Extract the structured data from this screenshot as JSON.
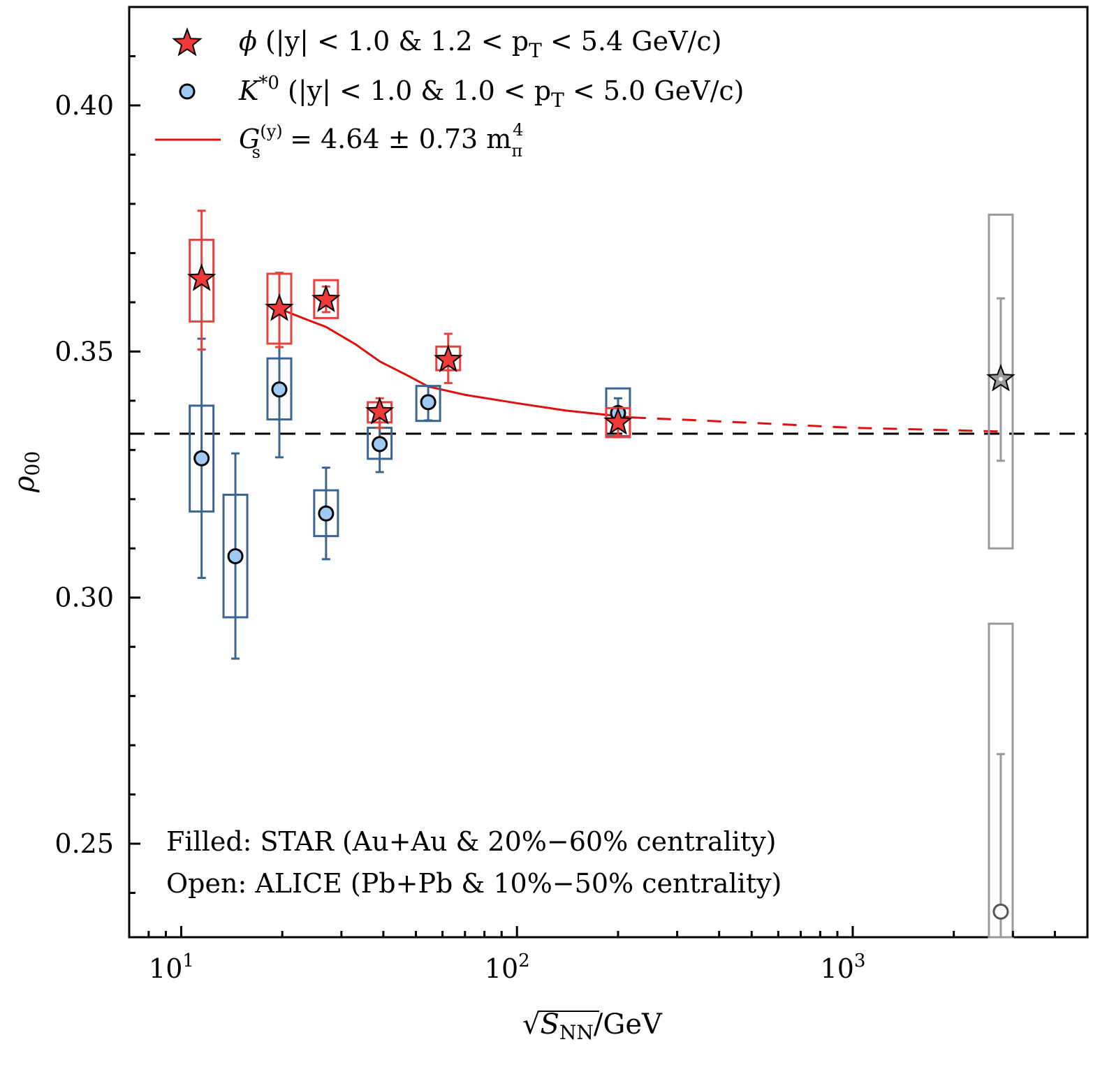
{
  "chart_data": {
    "type": "scatter",
    "title": "",
    "xlabel": "√S_NN/GeV",
    "xlabel_parts": {
      "sqrt_symbol": "√",
      "var": "S",
      "sub": "NN",
      "unit": "/GeV"
    },
    "ylabel": "ρ00",
    "ylabel_parts": {
      "var": "ρ",
      "sub": "00"
    },
    "xscale": "log",
    "xlim": [
      7.0,
      5000
    ],
    "ylim": [
      0.231,
      0.42
    ],
    "x_ticks": [
      {
        "value": 10,
        "base": "10",
        "exp": "1"
      },
      {
        "value": 100,
        "base": "10",
        "exp": "2"
      },
      {
        "value": 1000,
        "base": "10",
        "exp": "3"
      }
    ],
    "y_ticks": [
      {
        "value": 0.25,
        "label": "0.25"
      },
      {
        "value": 0.3,
        "label": "0.30"
      },
      {
        "value": 0.35,
        "label": "0.35"
      },
      {
        "value": 0.4,
        "label": "0.40"
      }
    ],
    "y_minor_step": 0.01,
    "grid": false,
    "reference_line": {
      "y": 0.3333,
      "style": "dashed",
      "color": "#000000"
    },
    "legend": {
      "placement": "top-left",
      "entries": [
        {
          "marker": "star",
          "label_symbol": "ϕ",
          "label_rest": " (|y| < 1.0 & 1.2 < p",
          "label_sub": "T",
          "label_end": " < 5.4 GeV/c)"
        },
        {
          "marker": "circle",
          "label_symbol": "K",
          "label_sup": "*0",
          "label_rest": " (|y| < 1.0 & 1.0 < p",
          "label_sub": "T",
          "label_end": " < 5.0 GeV/c)"
        },
        {
          "marker": "line",
          "label_symbol": "G",
          "label_sup": "(y)",
          "label_sub": "s",
          "label_rest": " = 4.64 ± 0.73 m",
          "label_sub2": "π",
          "label_sup2": "4"
        }
      ]
    },
    "annotations": [
      "Filled: STAR (Au+Au & 20%−60% centrality)",
      "Open: ALICE (Pb+Pb & 10%−50% centrality)"
    ],
    "colors": {
      "phi_fill": "#f03a3a",
      "phi_box": "#e8403f",
      "kstar_fill": "#9ecbf4",
      "kstar_box": "#3a6591",
      "fit_line": "#e01010",
      "alice": "#9a9a9a"
    },
    "series": [
      {
        "name": "phi STAR",
        "marker": "star",
        "filled": true,
        "points": [
          {
            "x": 11.5,
            "y": 0.3648,
            "stat": [
              0.3504,
              0.3786
            ],
            "sys": [
              0.3561,
              0.3727
            ]
          },
          {
            "x": 19.6,
            "y": 0.3587,
            "stat": [
              0.3509,
              0.366
            ],
            "sys": [
              0.3516,
              0.3658
            ]
          },
          {
            "x": 27,
            "y": 0.3605,
            "stat": [
              0.358,
              0.3632
            ],
            "sys": [
              0.3568,
              0.3645
            ]
          },
          {
            "x": 39,
            "y": 0.3377,
            "stat": [
              0.3345,
              0.3405
            ],
            "sys": [
              0.3356,
              0.3397
            ]
          },
          {
            "x": 62.4,
            "y": 0.3483,
            "stat": [
              0.3436,
              0.3536
            ],
            "sys": [
              0.3462,
              0.351
            ]
          },
          {
            "x": 200,
            "y": 0.3356,
            "stat": [
              0.333,
              0.3385
            ],
            "sys": [
              0.3326,
              0.3385
            ]
          }
        ]
      },
      {
        "name": "K*0 STAR",
        "marker": "circle",
        "filled": true,
        "points": [
          {
            "x": 11.5,
            "y": 0.3283,
            "stat": [
              0.304,
              0.3526
            ],
            "sys": [
              0.3175,
              0.339
            ]
          },
          {
            "x": 14.5,
            "y": 0.3084,
            "stat": [
              0.2876,
              0.3293
            ],
            "sys": [
              0.296,
              0.3209
            ]
          },
          {
            "x": 19.6,
            "y": 0.3423,
            "stat": [
              0.3285,
              0.3509
            ],
            "sys": [
              0.3362,
              0.3486
            ]
          },
          {
            "x": 27,
            "y": 0.3171,
            "stat": [
              0.3078,
              0.3264
            ],
            "sys": [
              0.3125,
              0.3218
            ]
          },
          {
            "x": 39,
            "y": 0.3312,
            "stat": [
              0.3255,
              0.337
            ],
            "sys": [
              0.3282,
              0.3345
            ]
          },
          {
            "x": 54.4,
            "y": 0.3397,
            "stat": [
              0.336,
              0.343
            ],
            "sys": [
              0.3359,
              0.343
            ]
          },
          {
            "x": 200,
            "y": 0.3375,
            "stat": [
              0.335,
              0.3405
            ],
            "sys": [
              0.3328,
              0.3425
            ]
          }
        ]
      },
      {
        "name": "phi ALICE",
        "marker": "star",
        "filled": false,
        "points": [
          {
            "x": 2760,
            "y": 0.3444,
            "stat": [
              0.3278,
              0.3608
            ],
            "sys": [
              0.31,
              0.3778
            ]
          }
        ]
      },
      {
        "name": "K*0 ALICE",
        "marker": "circle",
        "filled": false,
        "points": [
          {
            "x": 2760,
            "y": 0.2362,
            "stat": [
              0.22,
              0.2682
            ],
            "sys": [
              0.22,
              0.2947
            ]
          }
        ]
      }
    ],
    "fit_curve": {
      "name": "G_s^(y) = 4.64 ± 0.73 m_π^4",
      "solid": [
        [
          19.6,
          0.3587
        ],
        [
          23,
          0.3568
        ],
        [
          27,
          0.355
        ],
        [
          33,
          0.3515
        ],
        [
          39,
          0.348
        ],
        [
          47,
          0.3452
        ],
        [
          54.4,
          0.3429
        ],
        [
          70,
          0.3412
        ],
        [
          100,
          0.3395
        ],
        [
          140,
          0.338
        ],
        [
          200,
          0.3369
        ],
        [
          220,
          0.3366
        ]
      ],
      "dashed": [
        [
          220,
          0.3366
        ],
        [
          350,
          0.336
        ],
        [
          500,
          0.3355
        ],
        [
          1000,
          0.3345
        ],
        [
          2000,
          0.334
        ],
        [
          2900,
          0.3337
        ]
      ]
    }
  }
}
